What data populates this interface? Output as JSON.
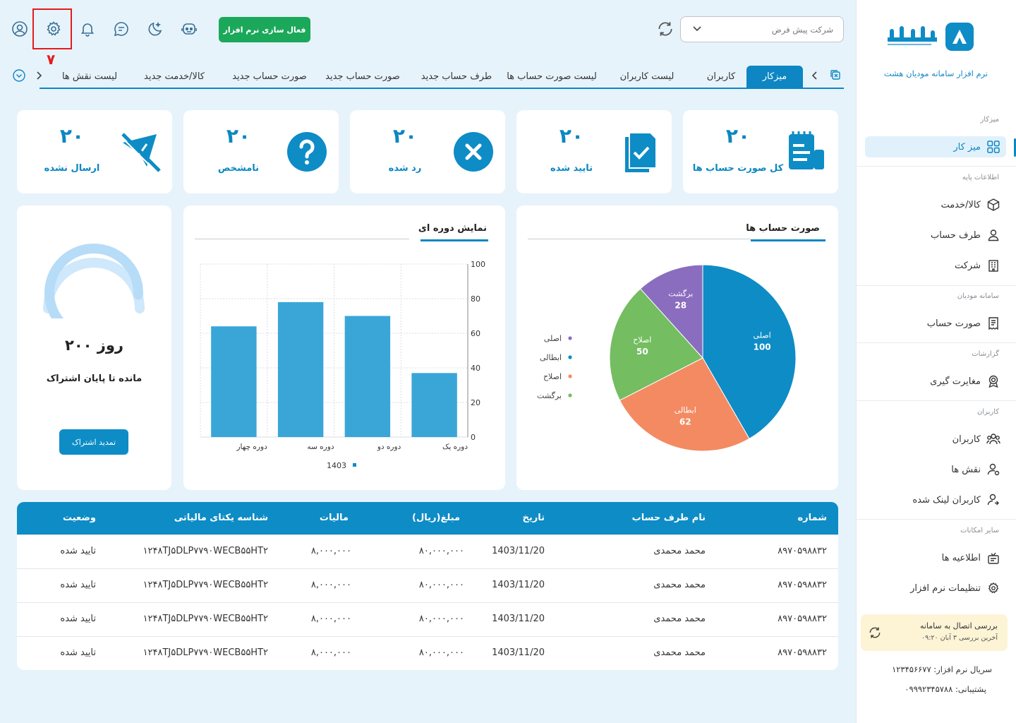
{
  "colors": {
    "accent": "#0d86c3",
    "green": "#1ba85a",
    "highlight": "#e41c1c",
    "pie": [
      "#0e8cc6",
      "#f48a61",
      "#74bd61",
      "#8a6dbf"
    ]
  },
  "topbar": {
    "icons": [
      "user-circle-icon",
      "gear-icon",
      "bell-icon",
      "chat-icon",
      "moon-icon",
      "support-bot-icon"
    ],
    "highlight_number": "۷",
    "activate_label": "فعال سازی نرم افزار",
    "company": {
      "value": "شرکت پیش فرض"
    }
  },
  "tabs": [
    {
      "label": "میزکار",
      "active": true
    },
    {
      "label": "کاربران"
    },
    {
      "label": "لیست کاربران"
    },
    {
      "label": "لیست صورت حساب ها"
    },
    {
      "label": "طرف حساب جدید"
    },
    {
      "label": "صورت حساب جدید"
    },
    {
      "label": "صورت حساب جدید"
    },
    {
      "label": "کالا/خدمت جدید"
    },
    {
      "label": "لیست نقش ها"
    }
  ],
  "stats": [
    {
      "value": "۲۰",
      "label": "کل صورت حساب ها",
      "icon": "invoice-icon"
    },
    {
      "value": "۲۰",
      "label": "تایید شده",
      "icon": "approved-doc-icon"
    },
    {
      "value": "۲۰",
      "label": "رد شده",
      "icon": "rejected-icon"
    },
    {
      "value": "۲۰",
      "label": "نامشخص",
      "icon": "question-icon"
    },
    {
      "value": "۲۰",
      "label": "ارسال نشده",
      "icon": "not-sent-icon"
    }
  ],
  "pie_panel": {
    "title": "صورت حساب ها"
  },
  "bar_panel": {
    "title": "نمایش دوره ای"
  },
  "subscription": {
    "days": "۲۰۰ روز",
    "remaining_label": "مانده تا پایان اشتراک",
    "renew_label": "تمدید اشتراک",
    "remaining_fraction": 0.85
  },
  "chart_data": [
    {
      "type": "pie",
      "title": "صورت حساب ها",
      "categories": [
        "اصلی",
        "ابطالی",
        "اصلاح",
        "برگشت"
      ],
      "values": [
        100,
        62,
        50,
        28
      ],
      "legend_position": "left"
    },
    {
      "type": "bar",
      "title": "نمایش دوره ای",
      "categories": [
        "دوره یک",
        "دوره دو",
        "دوره سه",
        "دوره چهار"
      ],
      "series": [
        {
          "name": "1403",
          "values": [
            37,
            70,
            78,
            64
          ]
        }
      ],
      "ylim": [
        0,
        100
      ],
      "yticks": [
        0,
        20,
        40,
        60,
        80,
        100
      ],
      "grid": true,
      "y_axis_side": "right",
      "x_direction": "right-to-left",
      "legend_position": "bottom"
    }
  ],
  "table": {
    "headers": [
      "شماره",
      "نام طرف حساب",
      "تاریخ",
      "مبلغ(ریال)",
      "مالیات",
      "شناسه یکتای مالیاتی",
      "وضعیت"
    ],
    "rows": [
      [
        "۸۹۷۰۵۹۸۸۳۲",
        "محمد محمدی",
        "1403/11/20",
        "۸۰,۰۰۰,۰۰۰",
        "۸,۰۰۰,۰۰۰",
        "۱۲۴۸TJ۵DLP۷۷۹۰WECB۵۵HT۲",
        "تایید شده"
      ],
      [
        "۸۹۷۰۵۹۸۸۳۲",
        "محمد محمدی",
        "1403/11/20",
        "۸۰,۰۰۰,۰۰۰",
        "۸,۰۰۰,۰۰۰",
        "۱۲۴۸TJ۵DLP۷۷۹۰WECB۵۵HT۲",
        "تایید شده"
      ],
      [
        "۸۹۷۰۵۹۸۸۳۲",
        "محمد محمدی",
        "1403/11/20",
        "۸۰,۰۰۰,۰۰۰",
        "۸,۰۰۰,۰۰۰",
        "۱۲۴۸TJ۵DLP۷۷۹۰WECB۵۵HT۲",
        "تایید شده"
      ],
      [
        "۸۹۷۰۵۹۸۸۳۲",
        "محمد محمدی",
        "1403/11/20",
        "۸۰,۰۰۰,۰۰۰",
        "۸,۰۰۰,۰۰۰",
        "۱۲۴۸TJ۵DLP۷۷۹۰WECB۵۵HT۲",
        "تایید شده"
      ]
    ]
  },
  "sidebar": {
    "brand": "هشت",
    "tagline": "نرم افزار سامانه مودیان هشت",
    "sections": [
      "میزکار",
      "اطلاعات پایه",
      "سامانه مودیان",
      "گزارشات",
      "کاربران",
      "سایر امکانات"
    ],
    "items": [
      {
        "label": "میز کار",
        "icon": "grid-icon",
        "active": true
      },
      {
        "label": "کالا/خدمت",
        "icon": "box-icon"
      },
      {
        "label": "طرف حساب",
        "icon": "person-icon"
      },
      {
        "label": "شرکت",
        "icon": "building-icon"
      },
      {
        "label": "صورت حساب",
        "icon": "receipt-icon"
      },
      {
        "label": "مغایرت گیری",
        "icon": "badge-icon"
      },
      {
        "label": "کاربران",
        "icon": "users-icon"
      },
      {
        "label": "نقش ها",
        "icon": "user-role-icon"
      },
      {
        "label": "کاربران لینک شده",
        "icon": "user-link-icon"
      },
      {
        "label": "اطلاعیه ها",
        "icon": "announcement-icon"
      },
      {
        "label": "تنظیمات نرم افزار",
        "icon": "settings-icon"
      }
    ],
    "connection": {
      "title": "بررسی اتصال به سامانه",
      "subtitle": "آخرین بررسی ۳ آبان ۰۹:۲۰"
    },
    "serial": "سریال نرم افزار: ۱۲۳۴۵۶۶۷۷",
    "support": "پشتیبانی: ۰۹۹۹۲۳۴۵۷۸۸"
  }
}
